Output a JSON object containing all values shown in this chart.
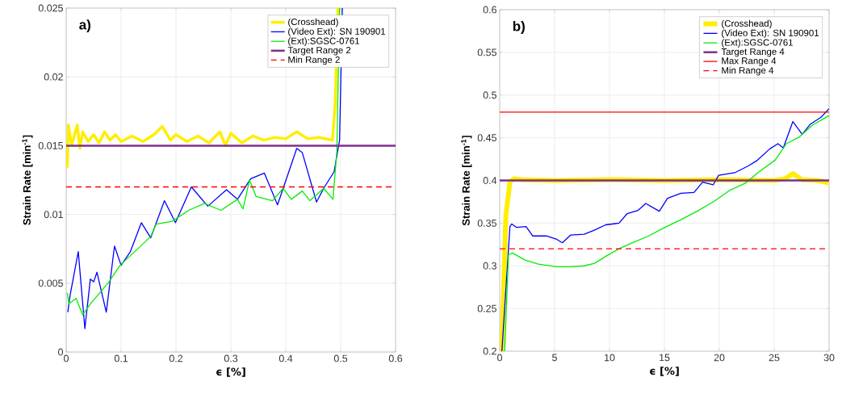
{
  "chart_data": [
    {
      "type": "line",
      "title": "a)",
      "xlabel": "ϵ [%]",
      "ylabel": "Strain Rate [min$^{-1}$]",
      "xlim": [
        0,
        0.6
      ],
      "ylim": [
        0,
        0.025
      ],
      "xticks": [
        0,
        0.1,
        0.2,
        0.3,
        0.4,
        0.5,
        0.6
      ],
      "yticks": [
        0,
        0.005,
        0.01,
        0.015,
        0.02,
        0.025
      ],
      "grid": true,
      "legend": "top right",
      "marker": "none",
      "line_style": "solid",
      "series": [
        {
          "name": "(Crosshead)",
          "color": "#ffee00",
          "x": [
            0.002,
            0.004,
            0.01,
            0.02,
            0.025,
            0.03,
            0.04,
            0.05,
            0.06,
            0.07,
            0.08,
            0.09,
            0.1,
            0.12,
            0.14,
            0.16,
            0.175,
            0.19,
            0.2,
            0.22,
            0.24,
            0.26,
            0.28,
            0.29,
            0.3,
            0.32,
            0.34,
            0.36,
            0.38,
            0.4,
            0.42,
            0.44,
            0.46,
            0.485,
            0.49,
            0.495
          ],
          "values": [
            0.0134,
            0.0165,
            0.015,
            0.0165,
            0.0148,
            0.016,
            0.0153,
            0.0158,
            0.0152,
            0.016,
            0.0154,
            0.0158,
            0.0153,
            0.0157,
            0.0153,
            0.0158,
            0.0164,
            0.0154,
            0.0158,
            0.0153,
            0.0157,
            0.0152,
            0.016,
            0.015,
            0.0159,
            0.0152,
            0.0157,
            0.0154,
            0.0156,
            0.0155,
            0.016,
            0.0155,
            0.0156,
            0.0154,
            0.018,
            0.025
          ]
        },
        {
          "name": "(Video Ext): SN 190901",
          "color": "#0000ff",
          "x": [
            0.003,
            0.007,
            0.022,
            0.034,
            0.044,
            0.05,
            0.056,
            0.073,
            0.088,
            0.1,
            0.117,
            0.137,
            0.154,
            0.179,
            0.199,
            0.228,
            0.258,
            0.292,
            0.312,
            0.336,
            0.361,
            0.385,
            0.42,
            0.43,
            0.456,
            0.469,
            0.488,
            0.498,
            0.503
          ],
          "values": [
            0.0029,
            0.0041,
            0.0073,
            0.0017,
            0.0053,
            0.0051,
            0.0058,
            0.0029,
            0.0077,
            0.0063,
            0.0073,
            0.0094,
            0.0083,
            0.011,
            0.0094,
            0.012,
            0.0106,
            0.0118,
            0.0111,
            0.0126,
            0.013,
            0.0107,
            0.0148,
            0.0145,
            0.0109,
            0.0119,
            0.0131,
            0.0154,
            0.025
          ]
        },
        {
          "name": "(Ext):SGSC-0761",
          "color": "#00ee00",
          "x": [
            0.002,
            0.005,
            0.018,
            0.03,
            0.044,
            0.061,
            0.078,
            0.098,
            0.125,
            0.154,
            0.164,
            0.193,
            0.223,
            0.252,
            0.282,
            0.312,
            0.322,
            0.334,
            0.346,
            0.376,
            0.395,
            0.41,
            0.43,
            0.444,
            0.469,
            0.486,
            0.493,
            0.498
          ],
          "values": [
            0.0043,
            0.0035,
            0.0039,
            0.0027,
            0.0035,
            0.0043,
            0.0051,
            0.0063,
            0.0073,
            0.0084,
            0.0093,
            0.0095,
            0.0103,
            0.0108,
            0.0103,
            0.0111,
            0.0104,
            0.0125,
            0.0113,
            0.011,
            0.0119,
            0.0111,
            0.0117,
            0.011,
            0.0119,
            0.0111,
            0.0146,
            0.025
          ]
        }
      ],
      "ref_lines": [
        {
          "axis": "y",
          "value": 0.015,
          "label": "Target Range 2",
          "color": "#7e2f8e",
          "line_style": "solid"
        },
        {
          "axis": "y",
          "value": 0.012,
          "label": "Min Range 2",
          "color": "#ff0000",
          "line_style": "dashed"
        }
      ]
    },
    {
      "type": "line",
      "title": "b)",
      "xlabel": "ϵ [%]",
      "ylabel": "Strain Rate [min$^{-1}$]",
      "xlim": [
        0,
        30
      ],
      "ylim": [
        0.2,
        0.6
      ],
      "xticks": [
        0,
        5,
        10,
        15,
        20,
        25,
        30
      ],
      "yticks": [
        0.2,
        0.25,
        0.3,
        0.35,
        0.4,
        0.45,
        0.5,
        0.55,
        0.6
      ],
      "grid": true,
      "legend": "top right",
      "marker": "none",
      "line_style": "solid",
      "series": [
        {
          "name": "(Crosshead)",
          "color": "#ffee00",
          "x": [
            0.2,
            0.56,
            0.93,
            1.3,
            2,
            5,
            10,
            15,
            20,
            25,
            26,
            26.7,
            27.5,
            29,
            30
          ],
          "values": [
            0.2,
            0.359,
            0.398,
            0.402,
            0.401,
            0.4,
            0.401,
            0.4,
            0.401,
            0.4,
            0.402,
            0.408,
            0.401,
            0.4,
            0.397
          ]
        },
        {
          "name": "(Video Ext): SN 190901",
          "color": "#0000ff",
          "x": [
            0.2,
            0.93,
            1.1,
            1.54,
            2.4,
            3.0,
            4.24,
            5.2,
            5.7,
            6.45,
            7.7,
            8.65,
            9.64,
            10.86,
            11.6,
            12.6,
            13.3,
            14.54,
            15.28,
            16.5,
            17.7,
            18.47,
            19.45,
            19.94,
            21.4,
            22.64,
            23.4,
            24.6,
            25.34,
            25.83,
            26.7,
            27.55,
            28.3,
            29.26,
            30
          ],
          "values": [
            0.2,
            0.346,
            0.349,
            0.345,
            0.346,
            0.335,
            0.335,
            0.331,
            0.327,
            0.336,
            0.337,
            0.342,
            0.348,
            0.35,
            0.361,
            0.365,
            0.373,
            0.364,
            0.379,
            0.385,
            0.386,
            0.398,
            0.395,
            0.406,
            0.409,
            0.417,
            0.423,
            0.437,
            0.443,
            0.438,
            0.469,
            0.454,
            0.466,
            0.474,
            0.484
          ]
        },
        {
          "name": "(Ext):SGSC-0761",
          "color": "#00ee00",
          "x": [
            0.45,
            0.8,
            1.17,
            2.27,
            3.5,
            5.2,
            6.45,
            7.7,
            8.65,
            9.64,
            10.86,
            12.1,
            13.56,
            15.04,
            16.5,
            17.98,
            19.45,
            20.9,
            22.4,
            23.6,
            25.1,
            26.1,
            27.3,
            28.5,
            30
          ],
          "values": [
            0.2,
            0.313,
            0.315,
            0.307,
            0.302,
            0.299,
            0.299,
            0.3,
            0.303,
            0.311,
            0.32,
            0.327,
            0.335,
            0.345,
            0.354,
            0.364,
            0.375,
            0.388,
            0.397,
            0.41,
            0.424,
            0.443,
            0.451,
            0.465,
            0.476
          ]
        }
      ],
      "ref_lines": [
        {
          "axis": "y",
          "value": 0.4,
          "label": "Target Range 4",
          "color": "#7e2f8e",
          "line_style": "solid"
        },
        {
          "axis": "y",
          "value": 0.48,
          "label": "Max Range 4",
          "color": "#ff0000",
          "line_style": "solid"
        },
        {
          "axis": "y",
          "value": 0.32,
          "label": "Min Range 4",
          "color": "#ff0000",
          "line_style": "dashed"
        }
      ]
    }
  ]
}
